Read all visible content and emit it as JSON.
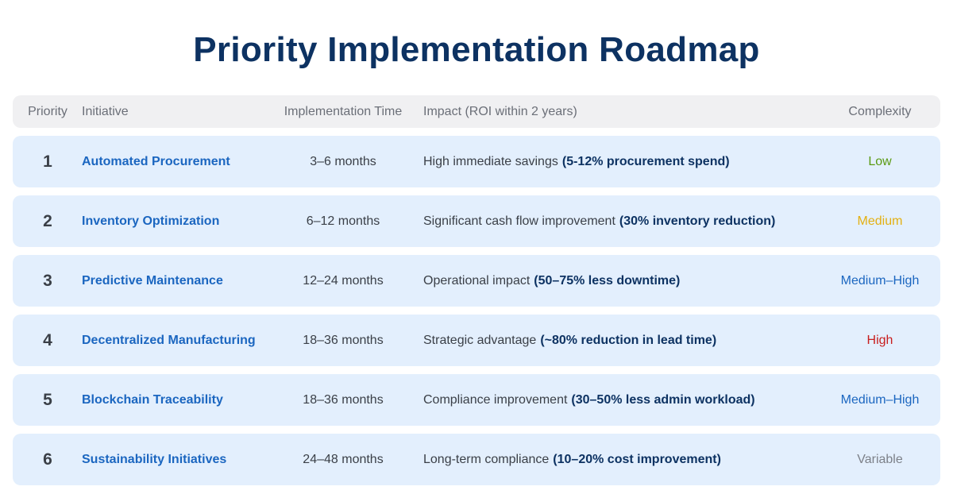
{
  "title": "Priority Implementation Roadmap",
  "columns": {
    "priority": "Priority",
    "initiative": "Initiative",
    "time": "Implementation Time",
    "impact": "Impact (ROI within 2 years)",
    "complexity": "Complexity"
  },
  "rows": [
    {
      "priority": "1",
      "initiative": "Automated Procurement",
      "time": "3–6 months",
      "impact": "High immediate savings",
      "impact_detail": "(5-12% procurement spend)",
      "complexity": "Low",
      "complexity_color": "#5a9a12"
    },
    {
      "priority": "2",
      "initiative": "Inventory Optimization",
      "time": "6–12 months",
      "impact": "Significant cash flow improvement",
      "impact_detail": "(30% inventory reduction)",
      "complexity": "Medium",
      "complexity_color": "#e3b012"
    },
    {
      "priority": "3",
      "initiative": "Predictive Maintenance",
      "time": "12–24 months",
      "impact": "Operational impact",
      "impact_detail": "(50–75% less downtime)",
      "complexity": "Medium–High",
      "complexity_color": "#1b66c0"
    },
    {
      "priority": "4",
      "initiative": "Decentralized Manufacturing",
      "time": "18–36 months",
      "impact": "Strategic advantage",
      "impact_detail": "(~80% reduction in lead time)",
      "complexity": "High",
      "complexity_color": "#c81e1e"
    },
    {
      "priority": "5",
      "initiative": "Blockchain Traceability",
      "time": "18–36 months",
      "impact": "Compliance improvement",
      "impact_detail": "(30–50% less admin workload)",
      "complexity": "Medium–High",
      "complexity_color": "#1b66c0"
    },
    {
      "priority": "6",
      "initiative": "Sustainability Initiatives",
      "time": "24–48 months",
      "impact": "Long-term compliance",
      "impact_detail": "(10–20% cost improvement)",
      "complexity": "Variable",
      "complexity_color": "#7d8189"
    }
  ]
}
